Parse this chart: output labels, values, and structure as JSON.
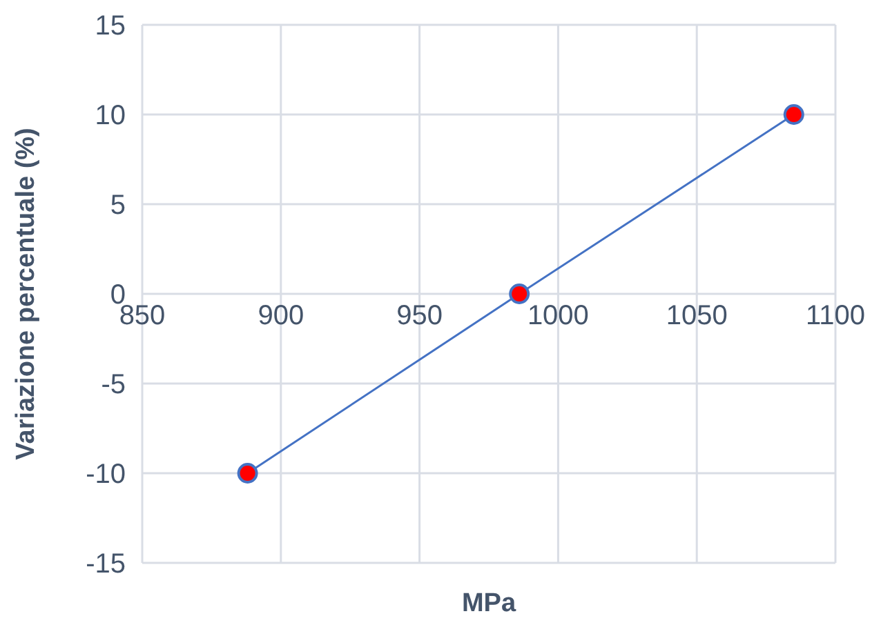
{
  "chart_data": {
    "type": "line",
    "xlabel": "MPa",
    "ylabel": "Variazione percentuale (%)",
    "x": [
      888,
      986,
      1085
    ],
    "series": [
      {
        "color": "#4472c4",
        "colors": [
          "#ff0000",
          "#ff0000",
          "#ff0000"
        ],
        "values": [
          -10,
          0,
          10
        ]
      }
    ],
    "xlim": [
      850,
      1100
    ],
    "xticks": [
      850,
      900,
      950,
      1000,
      1050,
      1100
    ],
    "ylim": [
      -15,
      15
    ],
    "yticks": [
      -15,
      -10,
      -5,
      0,
      5,
      10,
      15
    ],
    "grid": true,
    "marker": "circle",
    "line_style": "solid"
  }
}
